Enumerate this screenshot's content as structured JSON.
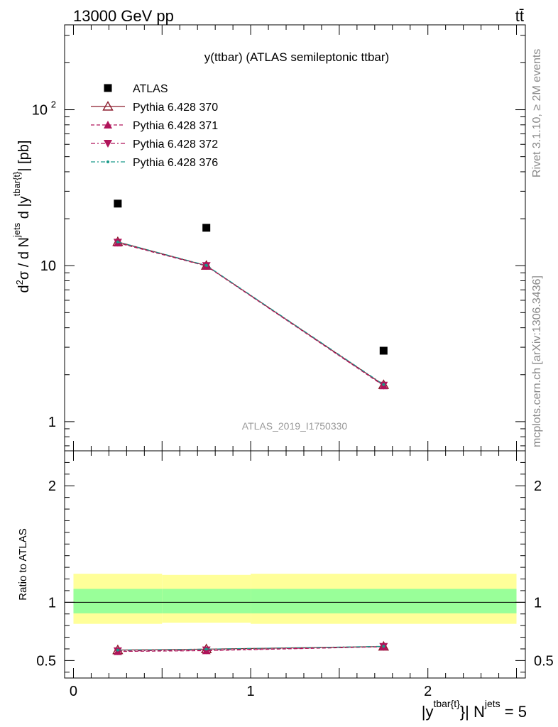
{
  "header": {
    "left": "13000 GeV pp",
    "right": "tt̄"
  },
  "side_labels": {
    "rivet": "Rivet 3.1.10, ≥ 2M events",
    "mcplots": "mcplots.cern.ch [arXiv:1306.3436]"
  },
  "colors": {
    "atlas": "#000000",
    "p370": "#8b1a2b",
    "p371": "#b0145a",
    "p372": "#b0145a",
    "p376": "#1a9a8a",
    "band_outer": "#ffff99",
    "band_inner": "#99ff99",
    "watermark": "#999999"
  },
  "chart_data": [
    {
      "type": "scatter",
      "title": "y(ttbar) (ATLAS semileptonic ttbar)",
      "watermark": "ATLAS_2019_I1750330",
      "ylabel": "d²σ / d N^jets d |y^tbar{t}| [pb]",
      "yscale": "log",
      "ylim": [
        0.65,
        350
      ],
      "xlim": [
        -0.05,
        2.55
      ],
      "yticks": [
        {
          "value": 1,
          "label": "1"
        },
        {
          "value": 10,
          "label": "10"
        },
        {
          "value": 100,
          "label": "10",
          "sup": "2"
        }
      ],
      "x": [
        0.25,
        0.75,
        1.75
      ],
      "series": [
        {
          "name": "ATLAS",
          "marker": "square",
          "line": "none",
          "values": [
            25.0,
            17.5,
            2.85
          ]
        },
        {
          "name": "Pythia 6.428 370",
          "marker": "triangle-up-open",
          "line": "solid",
          "values": [
            14.2,
            10.0,
            1.72
          ]
        },
        {
          "name": "Pythia 6.428 371",
          "marker": "triangle-up",
          "line": "dashed",
          "values": [
            14.0,
            9.95,
            1.7
          ]
        },
        {
          "name": "Pythia 6.428 372",
          "marker": "triangle-down",
          "line": "dashdot",
          "values": [
            14.1,
            10.0,
            1.71
          ]
        },
        {
          "name": "Pythia 6.428 376",
          "marker": "dot",
          "line": "dashdot",
          "values": [
            14.2,
            10.05,
            1.73
          ]
        }
      ]
    },
    {
      "type": "line",
      "ylabel": "Ratio to ATLAS",
      "xlabel": "|y^tbar{t}| N^jets = 5",
      "ylim": [
        0.35,
        2.3
      ],
      "xlim": [
        -0.05,
        2.55
      ],
      "yticks": [
        0.5,
        1,
        2
      ],
      "xticks": [
        0,
        1,
        2
      ],
      "bands": {
        "edges": [
          0,
          0.5,
          1.0,
          2.5
        ],
        "outer_lo": [
          0.815,
          0.825,
          0.815
        ],
        "outer_hi": [
          1.245,
          1.235,
          1.245
        ],
        "inner_lo": [
          0.905,
          0.905,
          0.905
        ],
        "inner_hi": [
          1.115,
          1.115,
          1.115
        ]
      },
      "x": [
        0.25,
        0.75,
        1.75
      ],
      "series": [
        {
          "name": "Pythia 6.428 370",
          "values": [
            0.59,
            0.598,
            0.62
          ]
        },
        {
          "name": "Pythia 6.428 371",
          "values": [
            0.578,
            0.585,
            0.618
          ]
        },
        {
          "name": "Pythia 6.428 372",
          "values": [
            0.582,
            0.59,
            0.62
          ]
        },
        {
          "name": "Pythia 6.428 376",
          "values": [
            0.59,
            0.598,
            0.622
          ]
        }
      ]
    }
  ]
}
